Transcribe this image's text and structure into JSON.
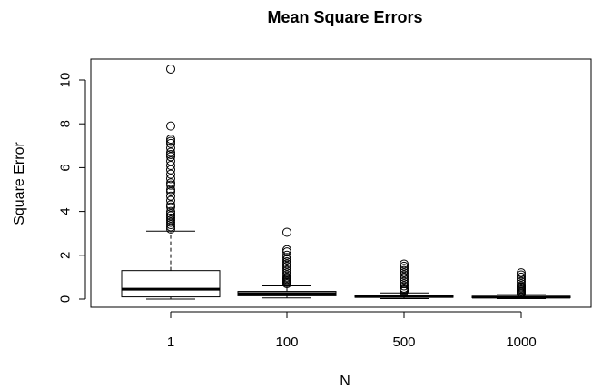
{
  "chart_data": {
    "type": "boxplot",
    "title": "Mean Square Errors",
    "xlabel": "N",
    "ylabel": "Square Error",
    "ylim": [
      -0.4,
      10.8
    ],
    "yticks": [
      0,
      2,
      4,
      6,
      8,
      10
    ],
    "grid": false,
    "categories": [
      "1",
      "100",
      "500",
      "1000"
    ],
    "boxes": [
      {
        "category": "1",
        "whisker_low": 0.0,
        "q1": 0.1,
        "median": 0.45,
        "q3": 1.3,
        "whisker_high": 3.1,
        "outliers": [
          10.5,
          7.9,
          7.3,
          7.2,
          7.1,
          6.9,
          6.7,
          6.6,
          6.5,
          6.3,
          6.1,
          5.9,
          5.7,
          5.5,
          5.3,
          5.2,
          5.0,
          4.9,
          4.7,
          4.5,
          4.3,
          4.2,
          4.0,
          3.9,
          3.8,
          3.7,
          3.6,
          3.5,
          3.4,
          3.3,
          3.2
        ]
      },
      {
        "category": "100",
        "whisker_low": 0.05,
        "q1": 0.15,
        "median": 0.25,
        "q3": 0.35,
        "whisker_high": 0.6,
        "outliers": [
          3.05,
          2.25,
          2.15,
          2.0,
          1.9,
          1.8,
          1.7,
          1.6,
          1.5,
          1.4,
          1.3,
          1.2,
          1.1,
          1.0,
          0.95,
          0.9,
          0.85,
          0.8,
          0.75,
          0.7
        ]
      },
      {
        "category": "500",
        "whisker_low": 0.02,
        "q1": 0.08,
        "median": 0.12,
        "q3": 0.17,
        "whisker_high": 0.28,
        "outliers": [
          1.6,
          1.5,
          1.4,
          1.3,
          1.2,
          1.1,
          1.0,
          0.9,
          0.8,
          0.7,
          0.6,
          0.5,
          0.45,
          0.4,
          0.35
        ]
      },
      {
        "category": "1000",
        "whisker_low": 0.02,
        "q1": 0.06,
        "median": 0.09,
        "q3": 0.13,
        "whisker_high": 0.2,
        "outliers": [
          1.2,
          1.1,
          1.0,
          0.9,
          0.8,
          0.7,
          0.6,
          0.55,
          0.5,
          0.45,
          0.4,
          0.35,
          0.3,
          0.25
        ]
      }
    ]
  }
}
